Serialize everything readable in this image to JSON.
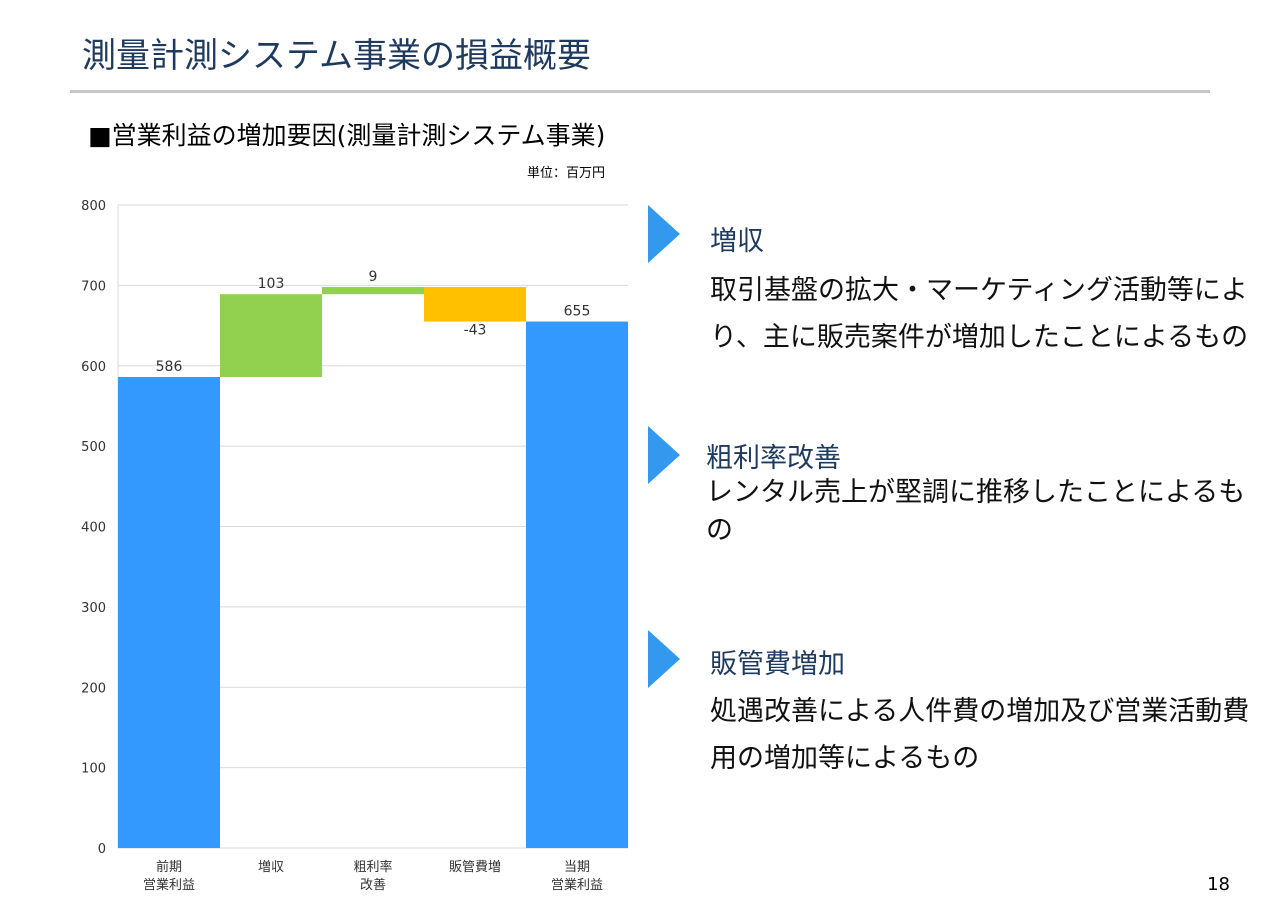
{
  "slide": {
    "title": "測量計測システム事業の損益概要",
    "subtitle": "■営業利益の増加要因(測量計測システム事業)",
    "unit": "単位：百万円",
    "page_number": "18"
  },
  "chart_data": {
    "type": "bar",
    "subtype": "waterfall",
    "categories": [
      "前期\n営業利益",
      "増収",
      "粗利率\n改善",
      "販管費増",
      "当期\n営業利益"
    ],
    "values": [
      586,
      103,
      9,
      -43,
      655
    ],
    "labels": [
      "586",
      "103",
      "9",
      "-43",
      "655"
    ],
    "ylim": [
      0,
      800
    ],
    "yticks": [
      0,
      100,
      200,
      300,
      400,
      500,
      600,
      700,
      800
    ],
    "grid": true,
    "colors": {
      "total": "#3399ff",
      "increase": "#92d050",
      "decrease": "#ffc000"
    }
  },
  "explanations": [
    {
      "heading": "増収",
      "body": "取引基盤の拡大・マーケティング活動等により、主に販売案件が増加したことによるもの"
    },
    {
      "heading": "粗利率改善",
      "body": "レンタル売上が堅調に推移したことによるもの"
    },
    {
      "heading": "販管費増加",
      "body": "処遇改善による人件費の増加及び営業活動費用の増加等によるもの"
    }
  ]
}
